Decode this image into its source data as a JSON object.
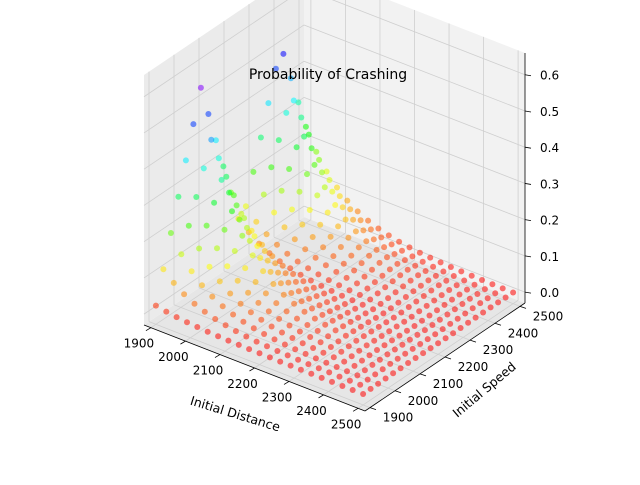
{
  "chart_data": {
    "type": "scatter",
    "projection": "3d",
    "title": "Probability of Crashing",
    "xlabel": "Initial Distance",
    "ylabel": "Initial Speed",
    "zlabel": "",
    "xlim": [
      1880,
      2520
    ],
    "ylim": [
      1880,
      2520
    ],
    "zlim": [
      -0.03,
      0.66
    ],
    "x_ticks": [
      "1900",
      "2000",
      "2100",
      "2200",
      "2300",
      "2400",
      "2500"
    ],
    "y_ticks": [
      "1900",
      "2000",
      "2100",
      "2200",
      "2300",
      "2400",
      "2500"
    ],
    "z_ticks": [
      "0.0",
      "0.1",
      "0.2",
      "0.3",
      "0.4",
      "0.5",
      "0.6"
    ],
    "x_tick_values": [
      1900,
      2000,
      2100,
      2200,
      2300,
      2400,
      2500
    ],
    "y_tick_values": [
      1900,
      2000,
      2100,
      2200,
      2300,
      2400,
      2500
    ],
    "z_tick_values": [
      0.0,
      0.1,
      0.2,
      0.3,
      0.4,
      0.5,
      0.6
    ],
    "grid": true,
    "colormap": "hsv",
    "color_range": [
      0.0,
      0.66
    ],
    "points": {
      "x_start": 1900,
      "x_end": 2500,
      "x_step": 30,
      "y_start": 1900,
      "y_end": 2500,
      "y_step": 30
    },
    "peaks": [
      {
        "distance": 1900,
        "speed": 2080,
        "probability": 0.65
      },
      {
        "distance": 1900,
        "speed": 2400,
        "probability": 0.61
      }
    ]
  },
  "colors": {
    "pane_back": "#f2f2f2",
    "pane_side": "#ebebeb",
    "pane_floor": "#e6e6e6",
    "grid": "#cfcfcf",
    "axis": "#000000"
  }
}
